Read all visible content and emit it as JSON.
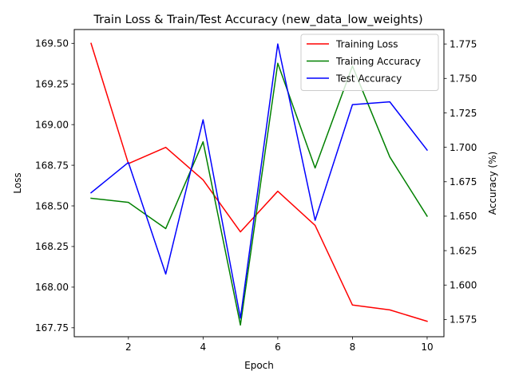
{
  "chart_data": {
    "type": "line",
    "title": "Train Loss & Train/Test Accuracy (new_data_low_weights)",
    "xlabel": "Epoch",
    "ylabel_left": "Loss",
    "ylabel_right": "Accuracy (%)",
    "x": [
      1,
      2,
      3,
      4,
      5,
      6,
      7,
      8,
      9,
      10
    ],
    "xlim": [
      0.55,
      10.45
    ],
    "xticks": [
      2,
      4,
      6,
      8,
      10
    ],
    "ylim_left": [
      167.695,
      169.585
    ],
    "yticks_left": [
      "167.75",
      "168.00",
      "168.25",
      "168.50",
      "168.75",
      "169.00",
      "169.25",
      "169.50"
    ],
    "ylim_right": [
      1.5625,
      1.7855
    ],
    "yticks_right": [
      "1.575",
      "1.600",
      "1.625",
      "1.650",
      "1.675",
      "1.700",
      "1.725",
      "1.750",
      "1.775"
    ],
    "legend_position": "upper right",
    "grid": false,
    "series": [
      {
        "name": "Training Loss",
        "axis": "left",
        "color": "#ff0000",
        "values": [
          169.5,
          168.76,
          168.86,
          168.66,
          168.34,
          168.59,
          168.38,
          167.89,
          167.86,
          167.79
        ]
      },
      {
        "name": "Training Accuracy",
        "axis": "right",
        "color": "#008000",
        "values": [
          1.663,
          1.66,
          1.641,
          1.704,
          1.571,
          1.761,
          1.685,
          1.759,
          1.693,
          1.65
        ]
      },
      {
        "name": "Test Accuracy",
        "axis": "right",
        "color": "#0000ff",
        "values": [
          1.667,
          1.689,
          1.608,
          1.72,
          1.576,
          1.775,
          1.647,
          1.731,
          1.733,
          1.698
        ]
      }
    ]
  }
}
